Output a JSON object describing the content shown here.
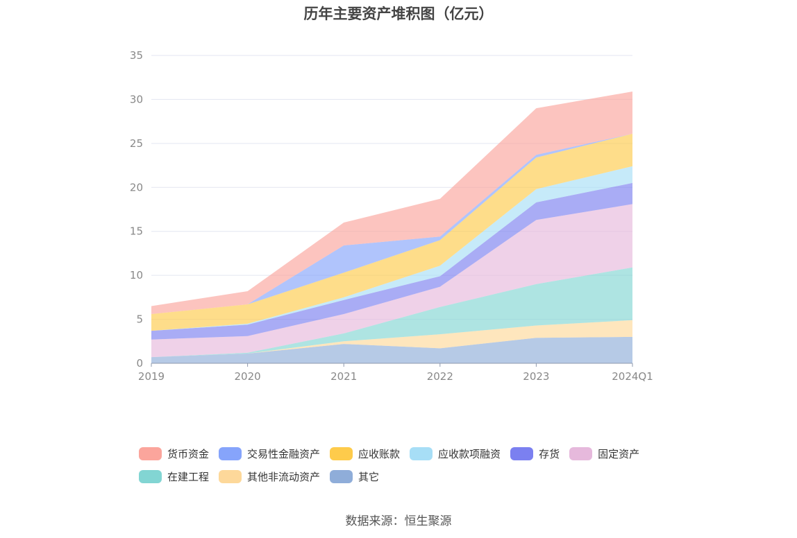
{
  "chart_data": {
    "type": "area",
    "stacked": true,
    "title": "历年主要资产堆积图（亿元）",
    "categories": [
      "2019",
      "2020",
      "2021",
      "2022",
      "2023",
      "2024Q1"
    ],
    "ylim": [
      0,
      35
    ],
    "yticks": [
      0,
      5,
      10,
      15,
      20,
      25,
      30,
      35
    ],
    "series": [
      {
        "name": "其它",
        "color": "#8fadd9",
        "values": [
          0.7,
          1.1,
          2.2,
          1.7,
          2.9,
          3.0
        ]
      },
      {
        "name": "其他非流动资产",
        "color": "#fdd89a",
        "values": [
          0.0,
          0.0,
          0.3,
          1.6,
          1.4,
          1.9
        ]
      },
      {
        "name": "在建工程",
        "color": "#82d5d3",
        "values": [
          0.0,
          0.1,
          0.9,
          3.1,
          4.7,
          6.0
        ]
      },
      {
        "name": "固定资产",
        "color": "#e6b9dc",
        "values": [
          2.0,
          1.9,
          2.2,
          2.3,
          7.3,
          7.2
        ]
      },
      {
        "name": "存货",
        "color": "#7b80f0",
        "values": [
          1.0,
          1.3,
          1.6,
          1.2,
          2.0,
          2.4
        ]
      },
      {
        "name": "应收款项融资",
        "color": "#a7def6",
        "values": [
          0.0,
          0.1,
          0.3,
          1.2,
          1.5,
          1.9
        ]
      },
      {
        "name": "应收账款",
        "color": "#fecb4b",
        "values": [
          1.9,
          2.2,
          2.8,
          2.9,
          3.6,
          3.7
        ]
      },
      {
        "name": "交易性金融资产",
        "color": "#86a4fb",
        "values": [
          0.0,
          0.0,
          3.1,
          0.4,
          0.3,
          0.0
        ]
      },
      {
        "name": "货币资金",
        "color": "#fba59c",
        "values": [
          0.9,
          1.5,
          2.6,
          4.3,
          5.3,
          4.8
        ]
      }
    ]
  },
  "legend": {
    "rows": [
      [
        "货币资金",
        "交易性金融资产",
        "应收账款",
        "应收款项融资",
        "存货",
        "固定资产"
      ],
      [
        "在建工程",
        "其他非流动资产",
        "其它"
      ]
    ]
  },
  "source": "数据来源：恒生聚源"
}
